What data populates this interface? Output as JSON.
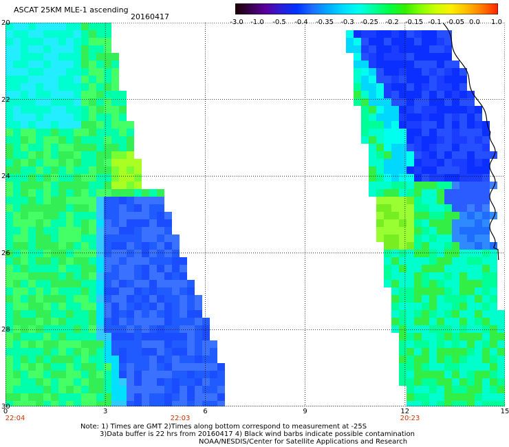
{
  "header": {
    "title": "ASCAT 25KM MLE-1 ascending",
    "date": "20160417"
  },
  "colorbar": {
    "labels": [
      "-3.0",
      "-1.0",
      "-0.5",
      "-0.4",
      "-0.35",
      "-0.3",
      "-0.25",
      "-0.2",
      "-0.15",
      "-0.1",
      "-0.05",
      "0.0",
      "1.0"
    ],
    "colors": [
      "#1a0000",
      "#4b0082",
      "#2a1fd6",
      "#0033ff",
      "#1e6dff",
      "#00ccff",
      "#00ffee",
      "#00ff66",
      "#33ee00",
      "#aaff00",
      "#ffee00",
      "#ff8800",
      "#ff2200"
    ]
  },
  "axes": {
    "y_labels": [
      "20",
      "22",
      "24",
      "26",
      "28",
      "30"
    ],
    "x_labels": [
      "0",
      "3",
      "6",
      "9",
      "12",
      "15"
    ],
    "time_labels": [
      "22:04",
      "22:03",
      "20:23"
    ]
  },
  "notes": {
    "line1": "Note: 1) Times are GMT 2)Times along bottom correspond to measurement at -25S",
    "line2": "3)Data buffer is 22 hrs from 20160417 4) Black wind barbs indicate possible contamination",
    "line3": "NOAA/NESDIS/Center for Satellite Applications and Research"
  }
}
